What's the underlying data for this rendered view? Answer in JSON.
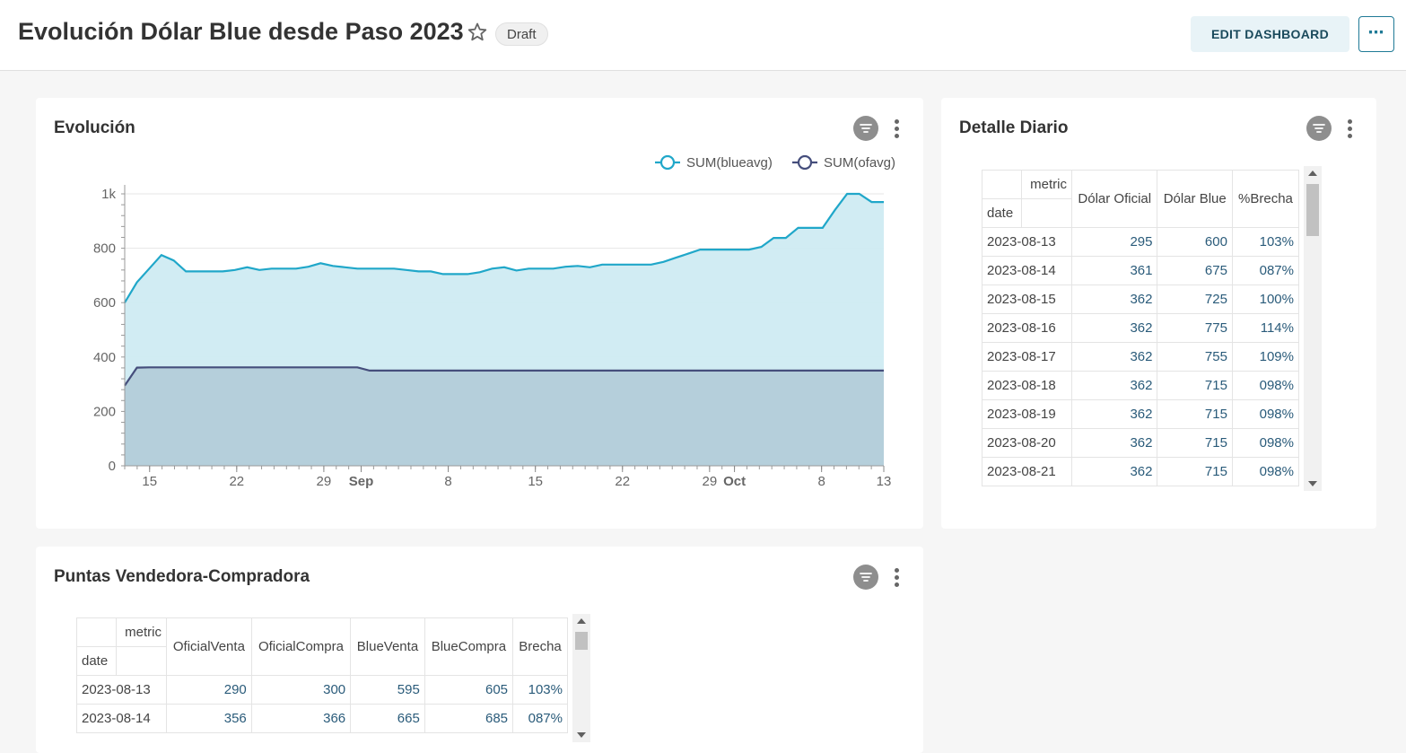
{
  "header": {
    "title": "Evolución Dólar Blue desde Paso 2023",
    "draft_label": "Draft",
    "edit_label": "EDIT DASHBOARD",
    "more_label": "⋯"
  },
  "evolucion": {
    "title": "Evolución"
  },
  "chart_data": {
    "type": "area",
    "series": [
      {
        "name": "SUM(blueavg)",
        "color": "#20a7c9",
        "values": [
          600,
          675,
          725,
          775,
          755,
          715,
          715,
          715,
          715,
          720,
          730,
          720,
          725,
          725,
          725,
          732,
          745,
          735,
          730,
          725,
          725,
          725,
          725,
          720,
          715,
          715,
          705,
          705,
          705,
          712,
          725,
          730,
          718,
          725,
          725,
          725,
          732,
          735,
          730,
          740,
          740,
          740,
          740,
          740,
          750,
          765,
          780,
          795,
          795,
          795,
          795,
          795,
          805,
          838,
          838,
          875,
          875,
          875,
          940,
          1000,
          1000,
          970,
          970
        ]
      },
      {
        "name": "SUM(ofavg)",
        "color": "#454e7c",
        "values": [
          295,
          361,
          362,
          362,
          362,
          362,
          362,
          362,
          362,
          362,
          362,
          362,
          362,
          362,
          362,
          362,
          362,
          362,
          362,
          362,
          350,
          350,
          350,
          350,
          350,
          350,
          350,
          350,
          350,
          350,
          350,
          350,
          350,
          350,
          350,
          350,
          350,
          350,
          350,
          350,
          350,
          350,
          350,
          350,
          350,
          350,
          350,
          350,
          350,
          350,
          350,
          350,
          350,
          350,
          350,
          350,
          350,
          350,
          350,
          350,
          350,
          350,
          350
        ]
      }
    ],
    "x_start": "2023-08-13",
    "x_end": "2023-10-13",
    "ylim": [
      0,
      1000
    ],
    "y_ticks": [
      "0",
      "200",
      "400",
      "600",
      "800",
      "1k"
    ],
    "x_ticks": [
      {
        "label": "15",
        "date": "2023-08-15",
        "bold": false
      },
      {
        "label": "22",
        "date": "2023-08-22",
        "bold": false
      },
      {
        "label": "29",
        "date": "2023-08-29",
        "bold": false
      },
      {
        "label": "Sep",
        "date": "2023-09-01",
        "bold": true
      },
      {
        "label": "8",
        "date": "2023-09-08",
        "bold": false
      },
      {
        "label": "15",
        "date": "2023-09-15",
        "bold": false
      },
      {
        "label": "22",
        "date": "2023-09-22",
        "bold": false
      },
      {
        "label": "29",
        "date": "2023-09-29",
        "bold": false
      },
      {
        "label": "Oct",
        "date": "2023-10-01",
        "bold": true
      },
      {
        "label": "8",
        "date": "2023-10-08",
        "bold": false
      },
      {
        "label": "13",
        "date": "2023-10-13",
        "bold": false
      }
    ],
    "legend_position": "top-right",
    "grid": true
  },
  "detalle": {
    "title": "Detalle Diario",
    "metric_label": "metric",
    "date_label": "date",
    "columns": [
      "Dólar Oficial",
      "Dólar Blue",
      "%Brecha"
    ],
    "rows": [
      {
        "date": "2023-08-13",
        "values": [
          "295",
          "600",
          "103%"
        ]
      },
      {
        "date": "2023-08-14",
        "values": [
          "361",
          "675",
          "087%"
        ]
      },
      {
        "date": "2023-08-15",
        "values": [
          "362",
          "725",
          "100%"
        ]
      },
      {
        "date": "2023-08-16",
        "values": [
          "362",
          "775",
          "114%"
        ]
      },
      {
        "date": "2023-08-17",
        "values": [
          "362",
          "755",
          "109%"
        ]
      },
      {
        "date": "2023-08-18",
        "values": [
          "362",
          "715",
          "098%"
        ]
      },
      {
        "date": "2023-08-19",
        "values": [
          "362",
          "715",
          "098%"
        ]
      },
      {
        "date": "2023-08-20",
        "values": [
          "362",
          "715",
          "098%"
        ]
      },
      {
        "date": "2023-08-21",
        "values": [
          "362",
          "715",
          "098%"
        ]
      }
    ]
  },
  "puntas": {
    "title": "Puntas Vendedora-Compradora",
    "metric_label": "metric",
    "date_label": "date",
    "columns": [
      "OficialVenta",
      "OficialCompra",
      "BlueVenta",
      "BlueCompra",
      "Brecha"
    ],
    "rows": [
      {
        "date": "2023-08-13",
        "values": [
          "290",
          "300",
          "595",
          "605",
          "103%"
        ]
      },
      {
        "date": "2023-08-14",
        "values": [
          "356",
          "366",
          "665",
          "685",
          "087%"
        ]
      }
    ]
  },
  "colors": {
    "blue_line": "#20a7c9",
    "blue_fill": "#cfebf2",
    "oficial_line": "#454e7c",
    "oficial_fill": "#b3cdd9"
  }
}
